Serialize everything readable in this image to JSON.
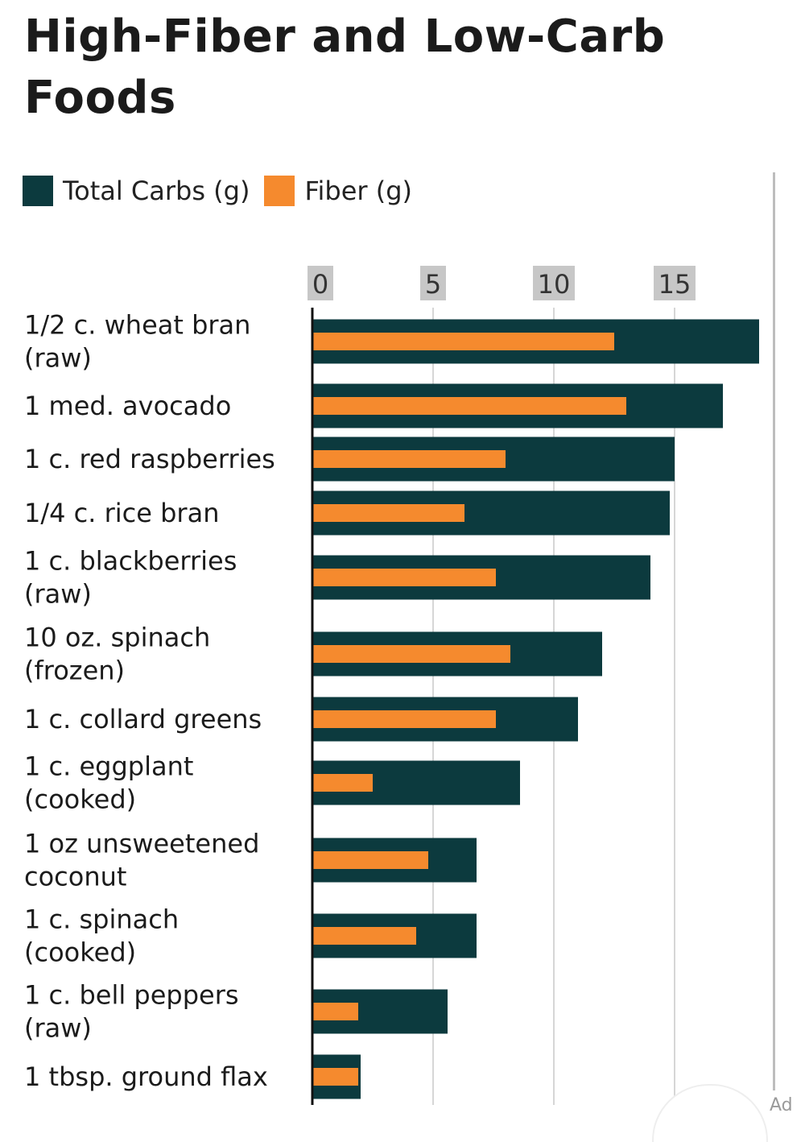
{
  "page": {
    "title": "High-Fiber and Low-Carb Foods",
    "corner_text": "Ad"
  },
  "colors": {
    "carbs": "#0c3a3e",
    "fiber": "#f58a2e",
    "tick_bg": "#c7c7c7",
    "grid": "#d6d6d6",
    "axis": "#111111",
    "text": "#1b1b1b"
  },
  "chart_data": {
    "type": "bar",
    "orientation": "horizontal",
    "title": "High-Fiber and Low-Carb Foods",
    "xlabel": "",
    "ylabel": "",
    "xlim": [
      0,
      19
    ],
    "x_ticks": [
      0,
      5,
      10,
      15
    ],
    "x_axis_position": "top",
    "grid": true,
    "legend_position": "top-left",
    "categories": [
      [
        "1/2 c. wheat bran",
        "(raw)"
      ],
      [
        "1 med. avocado"
      ],
      [
        "1 c. red raspberries"
      ],
      [
        "1/4 c. rice bran"
      ],
      [
        "1 c. blackberries",
        "(raw)"
      ],
      [
        "10 oz. spinach",
        "(frozen)"
      ],
      [
        "1 c. collard greens"
      ],
      [
        "1 c. eggplant",
        "(cooked)"
      ],
      [
        "1 oz unsweetened",
        "coconut"
      ],
      [
        "1 c. spinach",
        "(cooked)"
      ],
      [
        "1 c. bell peppers",
        "(raw)"
      ],
      [
        "1 tbsp. ground flax"
      ]
    ],
    "series": [
      {
        "name": "Total Carbs (g)",
        "color": "#0c3a3e",
        "values": [
          18.5,
          17,
          15,
          14.8,
          14,
          12,
          11,
          8.6,
          6.8,
          6.8,
          5.6,
          2
        ]
      },
      {
        "name": "Fiber (g)",
        "color": "#f58a2e",
        "values": [
          12.5,
          13,
          8,
          6.3,
          7.6,
          8.2,
          7.6,
          2.5,
          4.8,
          4.3,
          1.9,
          1.9
        ]
      }
    ]
  }
}
